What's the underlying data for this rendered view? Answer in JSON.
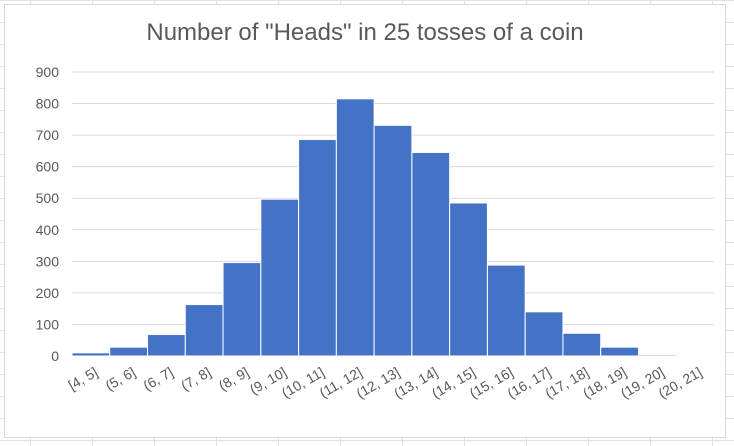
{
  "chart_data": {
    "type": "bar",
    "title": "Number of \"Heads\" in 25 tosses of a coin",
    "xlabel": "",
    "ylabel": "",
    "categories": [
      "[4, 5]",
      "(5, 6]",
      "(6, 7]",
      "(7, 8]",
      "(8, 9]",
      "(9, 10]",
      "(10, 11]",
      "(11, 12]",
      "(12, 13]",
      "(13, 14]",
      "(14, 15]",
      "(15, 16]",
      "(16, 17]",
      "(17, 18]",
      "(18, 19]",
      "(19, 20]",
      "(20, 21]"
    ],
    "values": [
      10,
      28,
      68,
      163,
      296,
      497,
      686,
      815,
      731,
      645,
      485,
      288,
      140,
      72,
      28,
      4,
      1
    ],
    "ylim": [
      0,
      900
    ],
    "yticks": [
      0,
      100,
      200,
      300,
      400,
      500,
      600,
      700,
      800,
      900
    ],
    "grid": true,
    "bar_color": "#4472c4"
  }
}
